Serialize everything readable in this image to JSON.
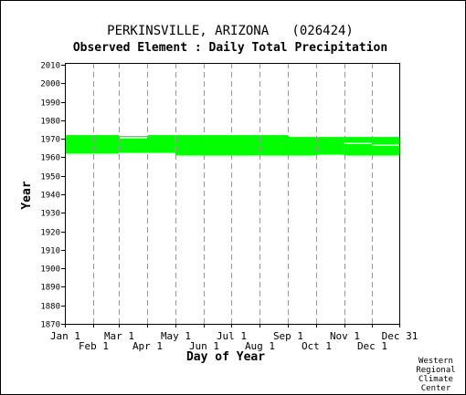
{
  "chart_data": {
    "type": "heatmap",
    "title": "PERKINSVILLE, ARIZONA   (026424)",
    "subtitle": "Observed Element : Daily Total Precipitation",
    "xlabel": "Day of Year",
    "ylabel": "Year",
    "x_ticks_upper": [
      "Jan 1",
      "Mar 1",
      "May 1",
      "Jul 1",
      "Sep 1",
      "Nov 1",
      "Dec 31"
    ],
    "x_ticks_lower": [
      "Feb 1",
      "Apr 1",
      "Jun 1",
      "Aug 1",
      "Oct 1",
      "Dec 1"
    ],
    "x_tick_days": [
      1,
      32,
      60,
      91,
      121,
      152,
      182,
      213,
      244,
      274,
      305,
      335,
      365
    ],
    "x_tick_labels_all": [
      "Jan 1",
      "Feb 1",
      "Mar 1",
      "Apr 1",
      "May 1",
      "Jun 1",
      "Jul 1",
      "Aug 1",
      "Sep 1",
      "Oct 1",
      "Nov 1",
      "Dec 1",
      "Dec 31"
    ],
    "xlim": [
      1,
      365
    ],
    "ylim": [
      1870,
      2011
    ],
    "y_ticks": [
      1870,
      1880,
      1890,
      1900,
      1910,
      1920,
      1930,
      1940,
      1950,
      1960,
      1970,
      1980,
      1990,
      2000,
      2010
    ],
    "grid": true,
    "data_color": "#00ff00",
    "period_of_record": [
      {
        "day_start": 1,
        "day_end": 60,
        "year_start": 1962.0,
        "year_end": 1972.0
      },
      {
        "day_start": 60,
        "day_end": 91,
        "year_start": 1962.5,
        "year_end": 1971.5
      },
      {
        "day_start": 91,
        "day_end": 121,
        "year_start": 1962.5,
        "year_end": 1972.0
      },
      {
        "day_start": 121,
        "day_end": 182,
        "year_start": 1961.0,
        "year_end": 1972.0
      },
      {
        "day_start": 182,
        "day_end": 244,
        "year_start": 1961.0,
        "year_end": 1972.0
      },
      {
        "day_start": 244,
        "day_end": 274,
        "year_start": 1961.0,
        "year_end": 1971.0
      },
      {
        "day_start": 274,
        "day_end": 305,
        "year_start": 1961.5,
        "year_end": 1971.0
      },
      {
        "day_start": 305,
        "day_end": 365,
        "year_start": 1961.0,
        "year_end": 1971.0
      }
    ],
    "gaps": [
      {
        "day_start": 60,
        "day_end": 91,
        "year": 1970.5
      },
      {
        "day_start": 305,
        "day_end": 335,
        "year": 1967.5
      },
      {
        "day_start": 335,
        "day_end": 365,
        "year": 1966.5
      }
    ]
  },
  "credit": [
    "Western",
    "Regional",
    "Climate",
    "Center"
  ],
  "colors": {
    "background": "#ffffff",
    "grid": "#999999",
    "axis": "#000000"
  }
}
